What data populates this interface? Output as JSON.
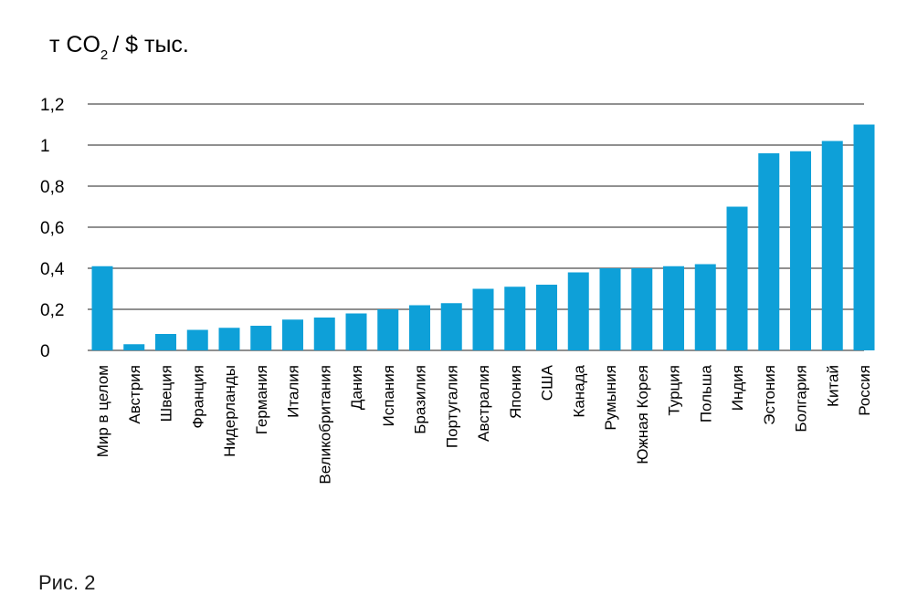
{
  "chart_data": {
    "type": "bar",
    "unit_label": {
      "main": "т CO",
      "subscript": "2",
      "tail": "/ $ тыс."
    },
    "categories": [
      "Мир в целом",
      "Австрия",
      "Швеция",
      "Франция",
      "Нидерланды",
      "Германия",
      "Италия",
      "Великобритания",
      "Дания",
      "Испания",
      "Бразилия",
      "Португалия",
      "Австралия",
      "Япония",
      "США",
      "Канада",
      "Румыния",
      "Южная Корея",
      "Турция",
      "Польша",
      "Индия",
      "Эстония",
      "Болгария",
      "Китай",
      "Россия"
    ],
    "values": [
      0.41,
      0.03,
      0.08,
      0.1,
      0.11,
      0.12,
      0.15,
      0.16,
      0.18,
      0.2,
      0.22,
      0.23,
      0.3,
      0.31,
      0.32,
      0.38,
      0.4,
      0.4,
      0.41,
      0.42,
      0.7,
      0.96,
      0.97,
      1.02,
      1.1
    ],
    "ylim": [
      0,
      1.2
    ],
    "yticks": [
      0,
      0.2,
      0.4,
      0.6,
      0.8,
      1,
      1.2
    ],
    "ytick_labels": [
      "0",
      "0,2",
      "0,4",
      "0,6",
      "0,8",
      "1",
      "1,2"
    ],
    "grid": true,
    "bar_color": "#0ea0d8"
  },
  "caption": "Рис. 2"
}
